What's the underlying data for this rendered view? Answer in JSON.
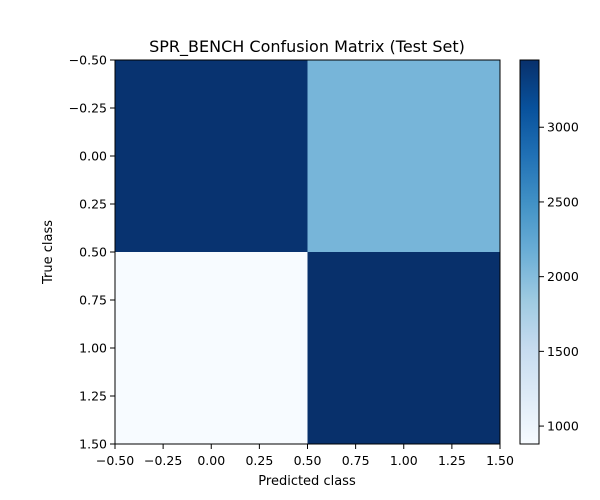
{
  "chart_data": {
    "type": "heatmap",
    "title": "SPR_BENCH Confusion Matrix (Test Set)",
    "xlabel": "Predicted class",
    "ylabel": "True class",
    "xlim": [
      -0.5,
      1.5
    ],
    "ylim": [
      1.5,
      -0.5
    ],
    "x_ticks": [
      -0.5,
      -0.25,
      0.0,
      0.25,
      0.5,
      0.75,
      1.0,
      1.25,
      1.5
    ],
    "x_tick_labels": [
      "−0.50",
      "−0.25",
      "0.00",
      "0.25",
      "0.50",
      "0.75",
      "1.00",
      "1.25",
      "1.50"
    ],
    "y_ticks": [
      -0.5,
      -0.25,
      0.0,
      0.25,
      0.5,
      0.75,
      1.0,
      1.25,
      1.5
    ],
    "y_tick_labels": [
      "−0.50",
      "−0.25",
      "0.00",
      "0.25",
      "0.50",
      "0.75",
      "1.00",
      "1.25",
      "1.50"
    ],
    "matrix": [
      [
        3420,
        2090
      ],
      [
        880,
        3450
      ]
    ],
    "colormap": "Blues",
    "color_range": [
      880,
      3450
    ],
    "colorbar_ticks": [
      1000,
      1500,
      2000,
      2500,
      3000
    ],
    "colorbar_tick_labels": [
      "1000",
      "1500",
      "2000",
      "2500",
      "3000"
    ]
  }
}
